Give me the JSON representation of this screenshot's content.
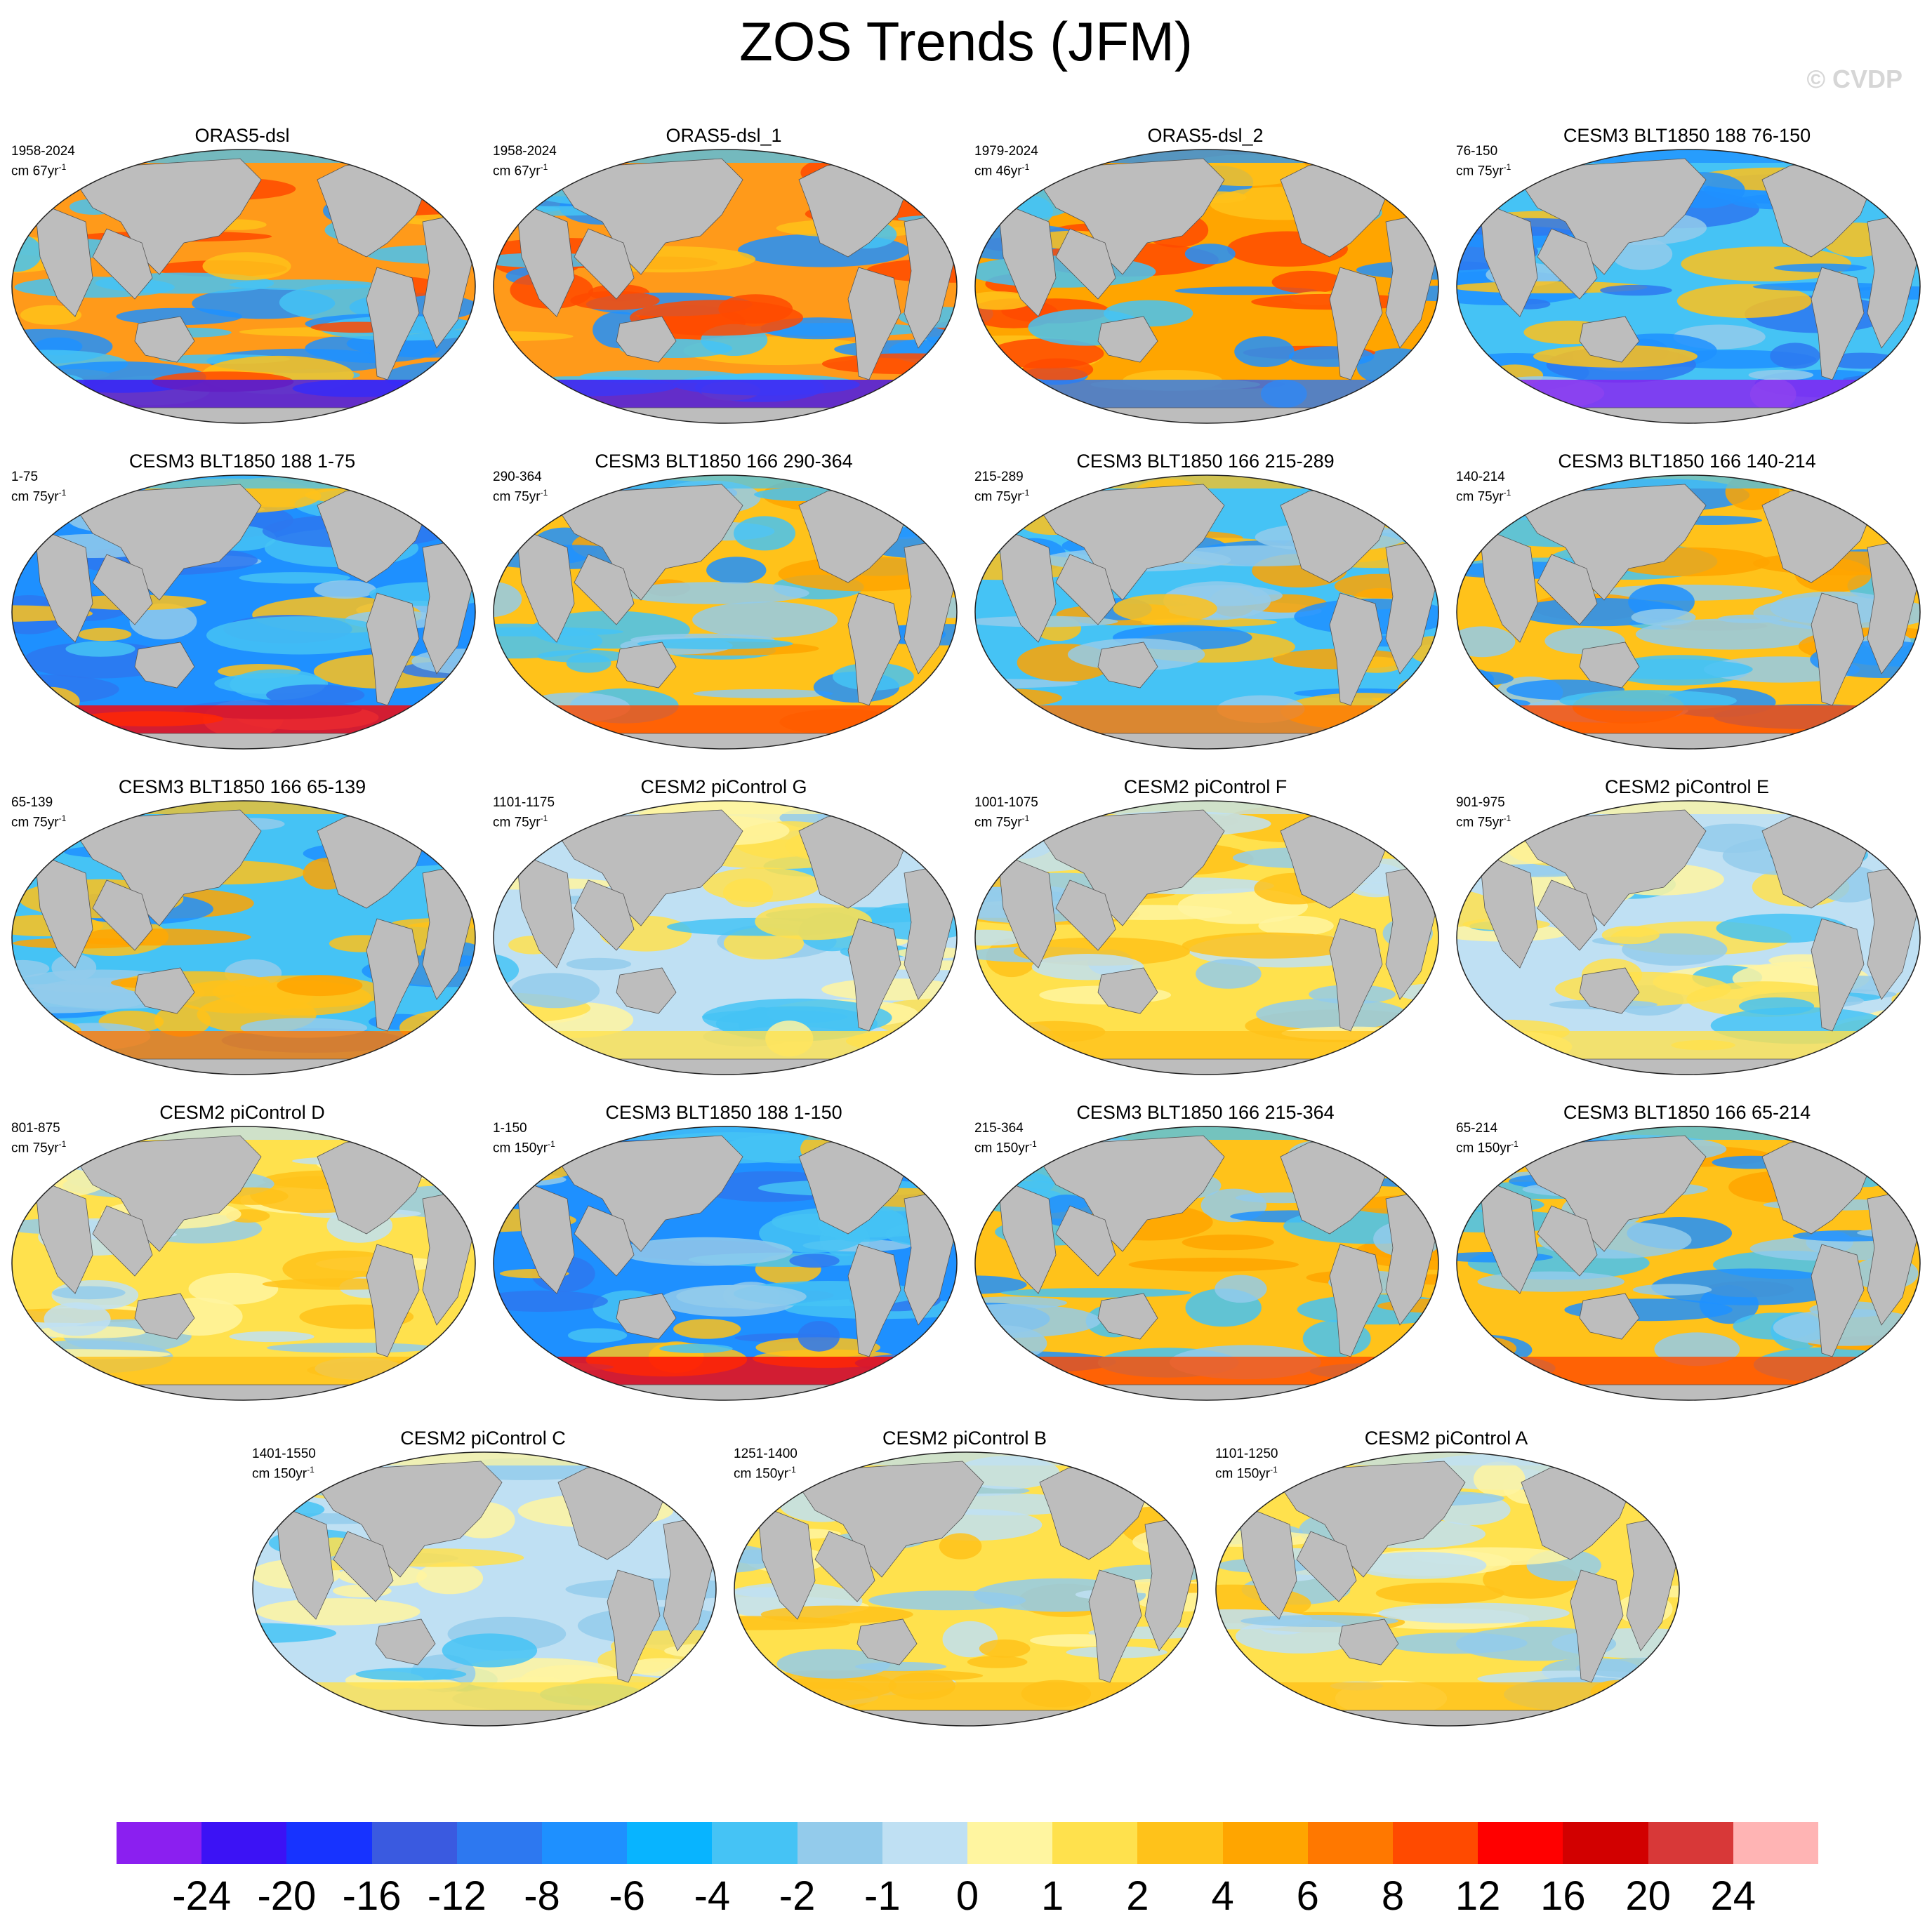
{
  "title": "ZOS Trends (JFM)",
  "copyright": "© CVDP",
  "panels": [
    {
      "title": "ORAS5-dsl",
      "years": "1958-2024",
      "unit": "cm 67yr",
      "exp": "-1",
      "pattern": "warm-west"
    },
    {
      "title": "ORAS5-dsl_1",
      "years": "1958-2024",
      "unit": "cm 67yr",
      "exp": "-1",
      "pattern": "warm-west"
    },
    {
      "title": "ORAS5-dsl_2",
      "years": "1979-2024",
      "unit": "cm 46yr",
      "exp": "-1",
      "pattern": "warm-south"
    },
    {
      "title": "CESM3 BLT1850 188 76-150",
      "years": "76-150",
      "unit": "cm 75yr",
      "exp": "-1",
      "pattern": "cool"
    },
    {
      "title": "CESM3 BLT1850 188 1-75",
      "years": "1-75",
      "unit": "cm 75yr",
      "exp": "-1",
      "pattern": "cool-south"
    },
    {
      "title": "CESM3 BLT1850 166 290-364",
      "years": "290-364",
      "unit": "cm 75yr",
      "exp": "-1",
      "pattern": "mixed-warm"
    },
    {
      "title": "CESM3 BLT1850 166 215-289",
      "years": "215-289",
      "unit": "cm 75yr",
      "exp": "-1",
      "pattern": "mixed"
    },
    {
      "title": "CESM3 BLT1850 166 140-214",
      "years": "140-214",
      "unit": "cm 75yr",
      "exp": "-1",
      "pattern": "mixed-warm"
    },
    {
      "title": "CESM3 BLT1850 166 65-139",
      "years": "65-139",
      "unit": "cm 75yr",
      "exp": "-1",
      "pattern": "mixed"
    },
    {
      "title": "CESM2 piControl G",
      "years": "1101-1175",
      "unit": "cm 75yr",
      "exp": "-1",
      "pattern": "light"
    },
    {
      "title": "CESM2 piControl F",
      "years": "1001-1075",
      "unit": "cm 75yr",
      "exp": "-1",
      "pattern": "light-warm"
    },
    {
      "title": "CESM2 piControl E",
      "years": "901-975",
      "unit": "cm 75yr",
      "exp": "-1",
      "pattern": "light"
    },
    {
      "title": "CESM2 piControl D",
      "years": "801-875",
      "unit": "cm 75yr",
      "exp": "-1",
      "pattern": "light-warm"
    },
    {
      "title": "CESM3 BLT1850 188 1-150",
      "years": "1-150",
      "unit": "cm 150yr",
      "exp": "-1",
      "pattern": "cool-south"
    },
    {
      "title": "CESM3 BLT1850 166 215-364",
      "years": "215-364",
      "unit": "cm 150yr",
      "exp": "-1",
      "pattern": "mixed-warm"
    },
    {
      "title": "CESM3 BLT1850 166 65-214",
      "years": "65-214",
      "unit": "cm 150yr",
      "exp": "-1",
      "pattern": "mixed-warm"
    },
    {
      "title": "CESM2 piControl C",
      "years": "1401-1550",
      "unit": "cm 150yr",
      "exp": "-1",
      "pattern": "light"
    },
    {
      "title": "CESM2 piControl B",
      "years": "1251-1400",
      "unit": "cm 150yr",
      "exp": "-1",
      "pattern": "light-warm"
    },
    {
      "title": "CESM2 piControl A",
      "years": "1101-1250",
      "unit": "cm 150yr",
      "exp": "-1",
      "pattern": "light-warm"
    }
  ],
  "colorbar": {
    "colors": [
      "#8b1ff0",
      "#3c12f5",
      "#1733ff",
      "#3a5ae0",
      "#2d78f0",
      "#1e90ff",
      "#08b4ff",
      "#45c3f5",
      "#93cbeb",
      "#bfe0f3",
      "#fff5a0",
      "#ffe14d",
      "#ffc21a",
      "#ffa500",
      "#ff7800",
      "#ff4a00",
      "#ff0000",
      "#d20000",
      "#d83838",
      "#ffb4b4"
    ],
    "labels": [
      "-24",
      "-20",
      "-16",
      "-12",
      "-8",
      "-6",
      "-4",
      "-2",
      "-1",
      "0",
      "1",
      "2",
      "4",
      "6",
      "8",
      "12",
      "16",
      "20",
      "24"
    ]
  }
}
